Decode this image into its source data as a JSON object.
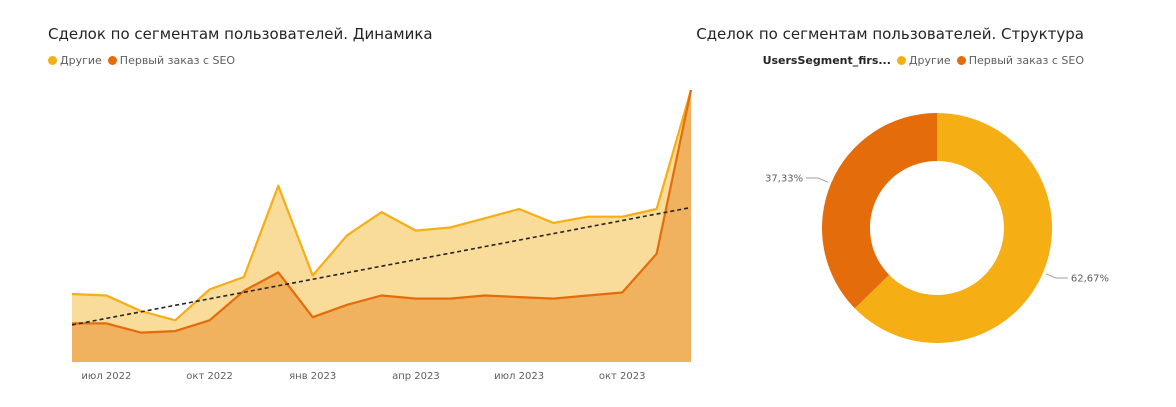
{
  "colors": {
    "other": "#F6AE15",
    "seo": "#E46C0A"
  },
  "chart_data": [
    {
      "type": "area",
      "title": "Сделок по сегментам пользователей. Динамика",
      "legend": {
        "position": "top-left"
      },
      "series": [
        {
          "name": "Другие",
          "color": "#F6AE15",
          "values": [
            44,
            43,
            33,
            27,
            47,
            55,
            114,
            56,
            82,
            97,
            85,
            87,
            93,
            99,
            90,
            94,
            94,
            99,
            176
          ]
        },
        {
          "name": "Первый заказ с SEO",
          "color": "#E46C0A",
          "values": [
            25,
            25,
            19,
            20,
            27,
            46,
            58,
            29,
            37,
            43,
            41,
            41,
            43,
            42,
            41,
            43,
            45,
            70,
            176
          ]
        }
      ],
      "trendline": {
        "values": [
          24,
          100
        ]
      },
      "x_tick_labels": [
        "июл 2022",
        "окт 2022",
        "янв 2023",
        "апр 2023",
        "июл 2023",
        "окт 2023"
      ],
      "ylim": [
        0,
        176
      ],
      "grid": false
    },
    {
      "type": "pie",
      "title": "Сделок по сегментам пользователей. Структура",
      "legend": {
        "title": "UsersSegment_firs...",
        "position": "top-right"
      },
      "donut": true,
      "slices": [
        {
          "name": "Другие",
          "value": 62.67,
          "label": "62,67%",
          "color": "#F6AE15"
        },
        {
          "name": "Первый заказ с SEO",
          "value": 37.33,
          "label": "37,33%",
          "color": "#E46C0A"
        }
      ]
    }
  ]
}
